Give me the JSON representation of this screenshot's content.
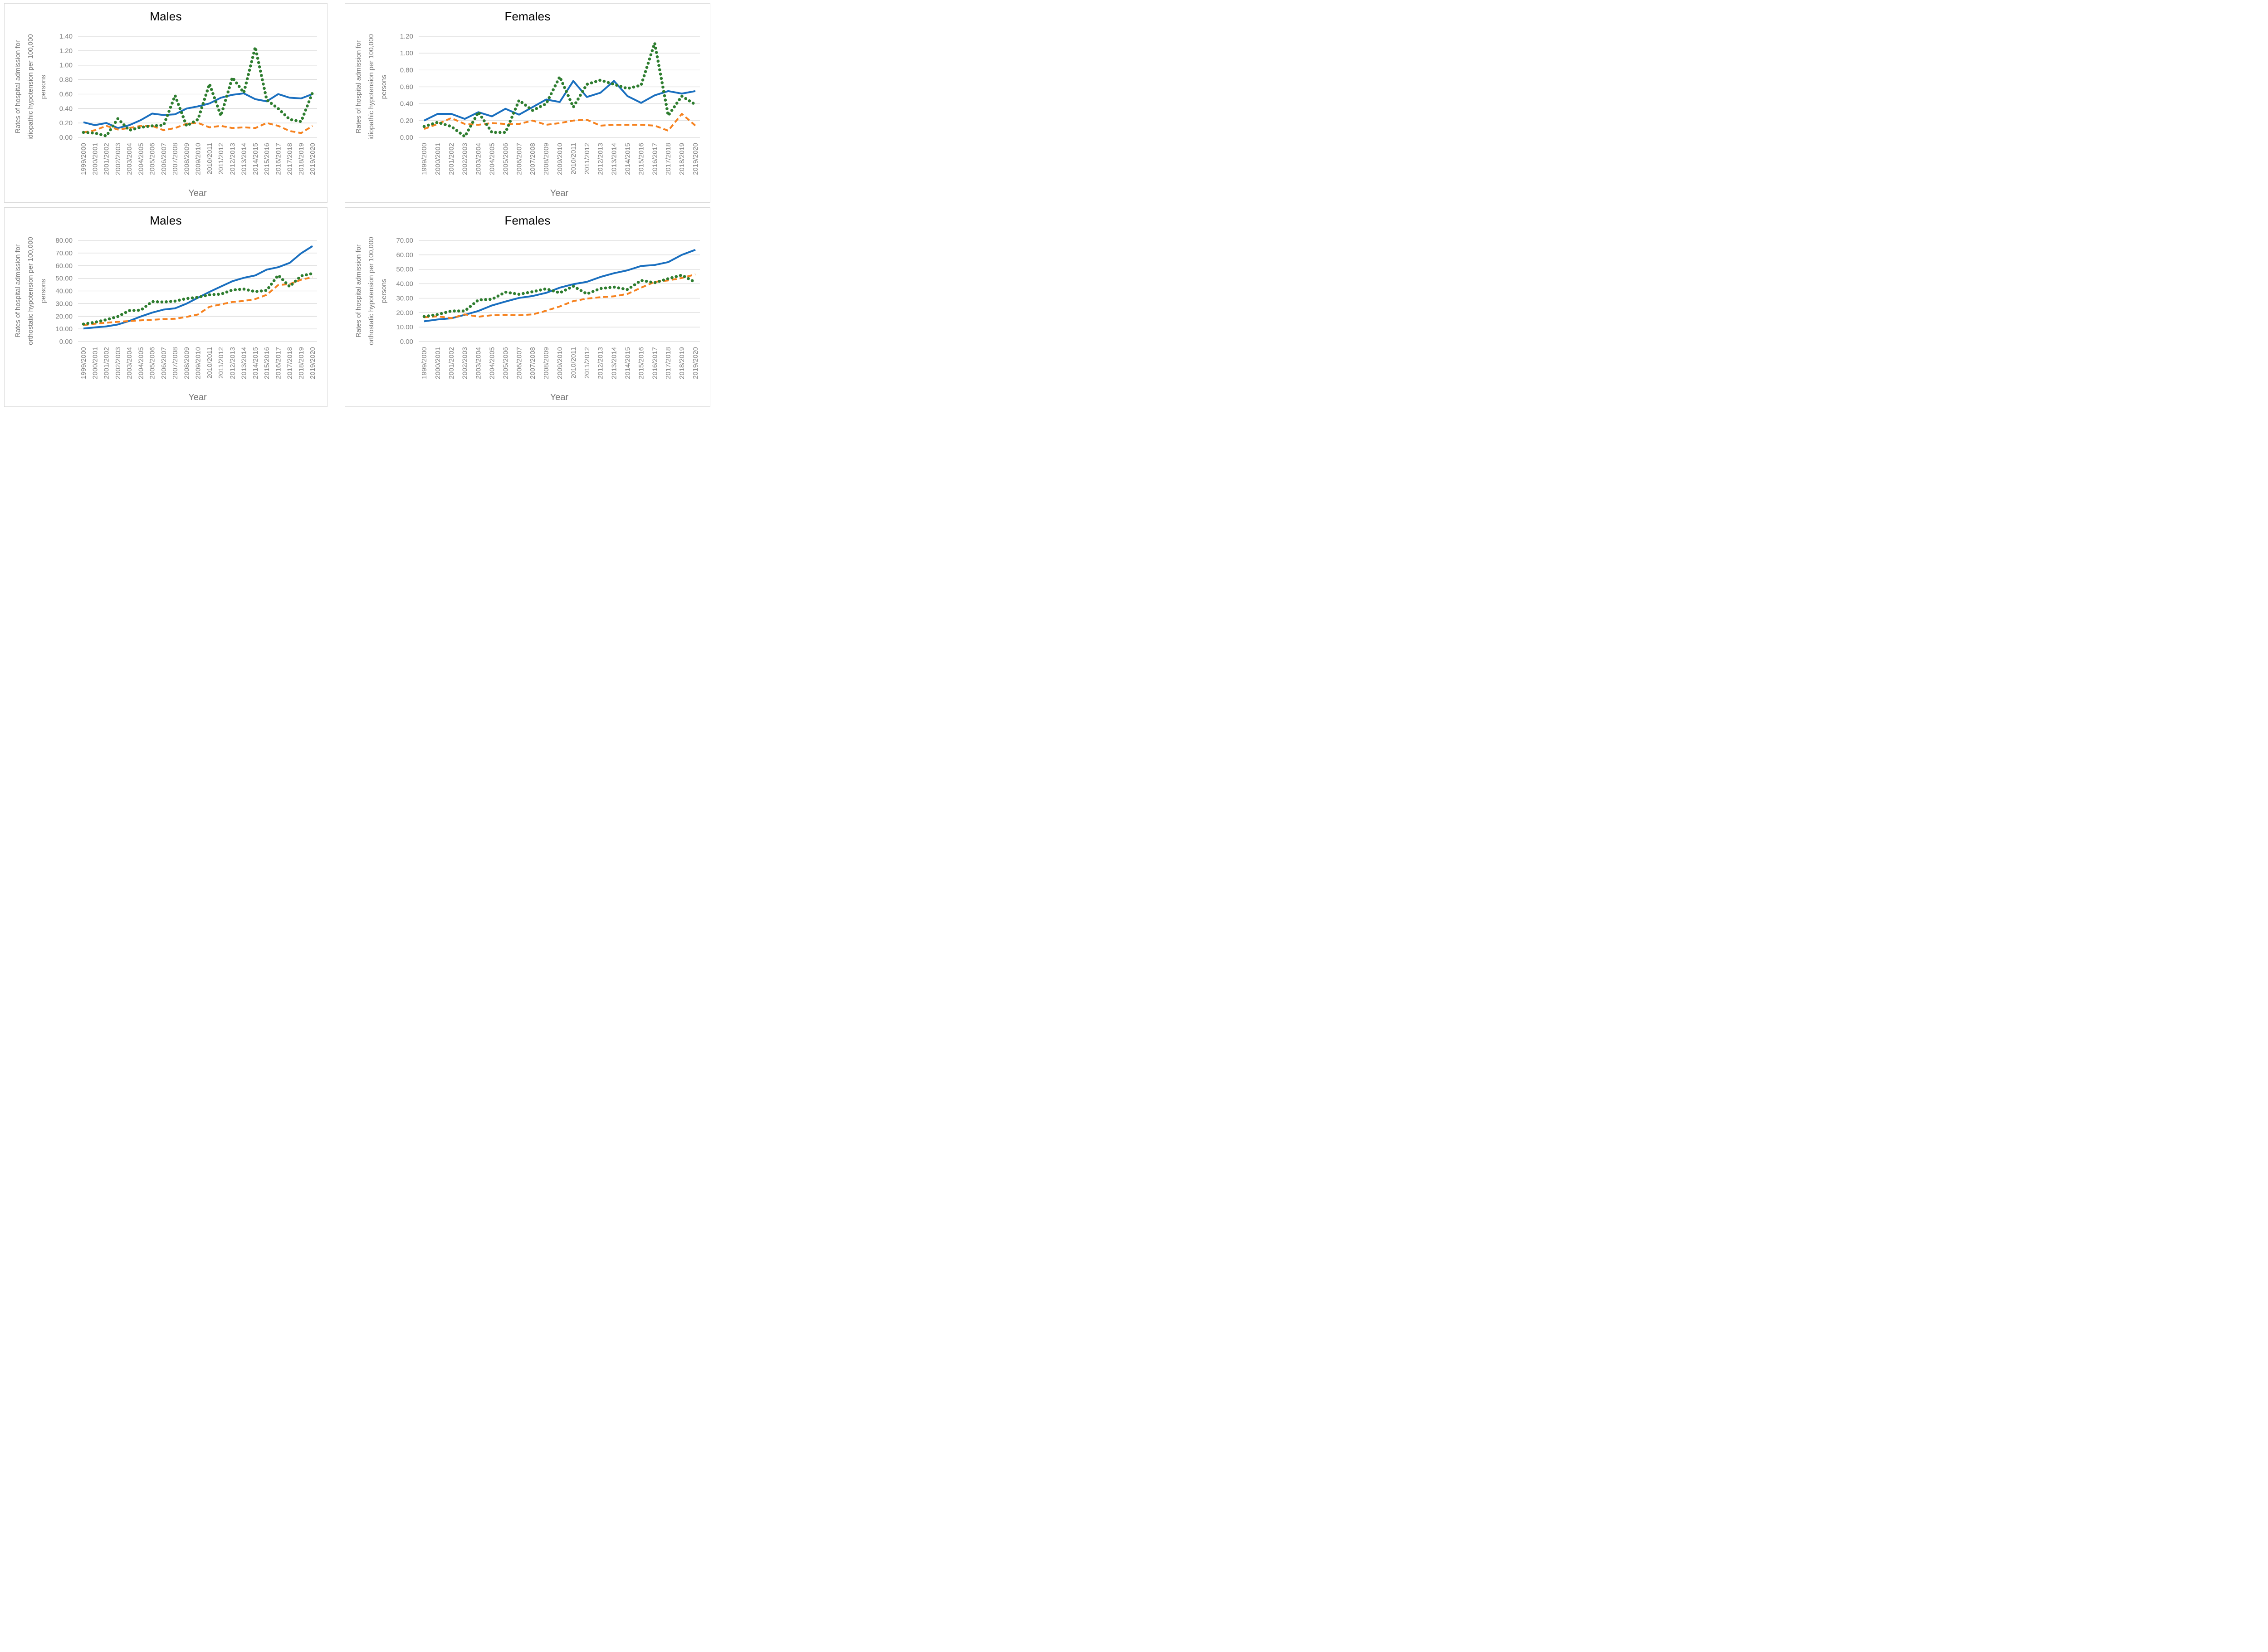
{
  "style": {
    "series_blue": "#1a6fbf",
    "series_orange": "#f6821f",
    "series_green": "#2e7d2f",
    "gridline_color": "#d9d9d9",
    "tick_label_color": "#808080",
    "axis_title_color": "#767676",
    "chart_title_color": "#000000",
    "panel_border_color": "#d9d9d9",
    "background": "#ffffff"
  },
  "chart_data": [
    {
      "type": "line",
      "title": "Males",
      "xlabel": "Year",
      "ylabel_lines": [
        "Rates of hospital admission for",
        "idiopathic hypotension per 100,000",
        "persons"
      ],
      "y_max": 1.4,
      "y_step": 0.2,
      "y_decimals": 2,
      "ylim": [
        0,
        1.4
      ],
      "grid": true,
      "legend": null,
      "categories": [
        "1999/2000",
        "2000/2001",
        "2001/2002",
        "2002/2003",
        "2003/2004",
        "2004/2005",
        "2005/2006",
        "2006/2007",
        "2007/2008",
        "2008/2009",
        "2009/2010",
        "2010/2011",
        "2011/2012",
        "2012/2013",
        "2013/2014",
        "2014/2015",
        "2015/2016",
        "2016/2017",
        "2017/2018",
        "2018/2019",
        "2019/2020"
      ],
      "series": [
        {
          "name": "blue-solid",
          "color": "#1a6fbf",
          "style": "solid",
          "values": [
            0.21,
            0.17,
            0.2,
            0.13,
            0.17,
            0.24,
            0.33,
            0.31,
            0.32,
            0.4,
            0.43,
            0.47,
            0.55,
            0.59,
            0.61,
            0.53,
            0.5,
            0.6,
            0.55,
            0.54,
            0.6
          ]
        },
        {
          "name": "orange-dashed",
          "color": "#f6821f",
          "style": "dashed",
          "values": [
            0.07,
            0.1,
            0.16,
            0.11,
            0.13,
            0.16,
            0.16,
            0.1,
            0.13,
            0.19,
            0.2,
            0.14,
            0.16,
            0.13,
            0.14,
            0.13,
            0.2,
            0.16,
            0.09,
            0.06,
            0.16
          ]
        },
        {
          "name": "green-dotted",
          "color": "#2e7d2f",
          "style": "dotted",
          "values": [
            0.07,
            0.06,
            0.02,
            0.26,
            0.1,
            0.14,
            0.16,
            0.17,
            0.58,
            0.16,
            0.25,
            0.74,
            0.3,
            0.83,
            0.62,
            1.25,
            0.52,
            0.4,
            0.25,
            0.22,
            0.62
          ]
        }
      ]
    },
    {
      "type": "line",
      "title": "Females",
      "xlabel": "Year",
      "ylabel_lines": [
        "Rates of hospital admission for",
        "idiopathic hypotension per 100,000",
        "persons"
      ],
      "y_max": 1.2,
      "y_step": 0.2,
      "y_decimals": 2,
      "ylim": [
        0,
        1.2
      ],
      "grid": true,
      "legend": null,
      "categories": [
        "1999/2000",
        "2000/2001",
        "2001/2002",
        "2002/2003",
        "2003/2004",
        "2004/2005",
        "2005/2006",
        "2006/2007",
        "2007/2008",
        "2008/2009",
        "2009/2010",
        "2010/2011",
        "2011/2012",
        "2012/2013",
        "2013/2014",
        "2014/2015",
        "2015/2016",
        "2016/2017",
        "2017/2018",
        "2018/2019",
        "2019/2020"
      ],
      "series": [
        {
          "name": "blue-solid",
          "color": "#1a6fbf",
          "style": "solid",
          "values": [
            0.2,
            0.28,
            0.28,
            0.22,
            0.3,
            0.25,
            0.34,
            0.27,
            0.36,
            0.45,
            0.42,
            0.67,
            0.48,
            0.53,
            0.67,
            0.49,
            0.41,
            0.5,
            0.55,
            0.52,
            0.55
          ]
        },
        {
          "name": "orange-dashed",
          "color": "#f6821f",
          "style": "dashed",
          "values": [
            0.1,
            0.16,
            0.23,
            0.16,
            0.15,
            0.17,
            0.16,
            0.16,
            0.2,
            0.15,
            0.17,
            0.2,
            0.21,
            0.14,
            0.15,
            0.15,
            0.15,
            0.14,
            0.08,
            0.28,
            0.14
          ]
        },
        {
          "name": "green-dotted",
          "color": "#2e7d2f",
          "style": "dotted",
          "values": [
            0.13,
            0.18,
            0.13,
            0.01,
            0.3,
            0.06,
            0.06,
            0.44,
            0.32,
            0.4,
            0.72,
            0.36,
            0.63,
            0.68,
            0.63,
            0.58,
            0.62,
            1.12,
            0.26,
            0.49,
            0.39
          ]
        }
      ]
    },
    {
      "type": "line",
      "title": "Males",
      "xlabel": "Year",
      "ylabel_lines": [
        "Rates of hospital admission for",
        "orthostatic hypotension per 100,000",
        "persons"
      ],
      "y_max": 80.0,
      "y_step": 10.0,
      "y_decimals": 2,
      "ylim": [
        0,
        80
      ],
      "grid": true,
      "legend": null,
      "categories": [
        "1999/2000",
        "2000/2001",
        "2001/2002",
        "2002/2003",
        "2003/2004",
        "2004/2005",
        "2005/2006",
        "2006/2007",
        "2007/2008",
        "2008/2009",
        "2009/2010",
        "2010/2011",
        "2011/2012",
        "2012/2013",
        "2013/2014",
        "2014/2015",
        "2015/2016",
        "2016/2017",
        "2017/2018",
        "2018/2019",
        "2019/2020"
      ],
      "series": [
        {
          "name": "blue-solid",
          "color": "#1a6fbf",
          "style": "solid",
          "values": [
            10.3,
            11.2,
            12.0,
            13.5,
            16.3,
            19.8,
            22.9,
            25.3,
            26.3,
            30.0,
            34.7,
            39.3,
            43.5,
            47.7,
            50.4,
            52.3,
            56.9,
            58.8,
            62.2,
            69.8,
            75.5
          ]
        },
        {
          "name": "orange-dashed",
          "color": "#f6821f",
          "style": "dashed",
          "values": [
            13.0,
            14.1,
            14.9,
            15.6,
            16.2,
            16.8,
            17.2,
            17.8,
            18.0,
            19.5,
            21.4,
            27.5,
            29.4,
            31.3,
            32.1,
            33.6,
            37.0,
            44.7,
            45.4,
            48.9,
            50.9
          ]
        },
        {
          "name": "green-dotted",
          "color": "#2e7d2f",
          "style": "dotted",
          "values": [
            13.8,
            15.3,
            17.3,
            19.8,
            24.5,
            24.8,
            31.6,
            31.3,
            32.0,
            34.0,
            35.0,
            37.0,
            37.5,
            40.8,
            41.5,
            39.5,
            40.5,
            52.5,
            43.5,
            51.9,
            53.8
          ]
        }
      ]
    },
    {
      "type": "line",
      "title": "Females",
      "xlabel": "Year",
      "ylabel_lines": [
        "Rates of hospital admission for",
        "orthostatic hypotension per 100,000",
        "persons"
      ],
      "y_max": 70.0,
      "y_step": 10.0,
      "y_decimals": 2,
      "ylim": [
        0,
        70
      ],
      "grid": true,
      "legend": null,
      "categories": [
        "1999/2000",
        "2000/2001",
        "2001/2002",
        "2002/2003",
        "2003/2004",
        "2004/2005",
        "2005/2006",
        "2006/2007",
        "2007/2008",
        "2008/2009",
        "2009/2010",
        "2010/2011",
        "2011/2012",
        "2012/2013",
        "2013/2014",
        "2014/2015",
        "2015/2016",
        "2016/2017",
        "2017/2018",
        "2018/2019",
        "2019/2020"
      ],
      "series": [
        {
          "name": "blue-solid",
          "color": "#1a6fbf",
          "style": "solid",
          "values": [
            14.0,
            15.3,
            16.1,
            18.5,
            21.2,
            25.0,
            27.7,
            30.2,
            31.5,
            33.7,
            37.3,
            39.7,
            41.3,
            44.7,
            47.3,
            49.3,
            52.3,
            53.0,
            55.0,
            60.0,
            63.5
          ]
        },
        {
          "name": "orange-dashed",
          "color": "#f6821f",
          "style": "dashed",
          "values": [
            16.8,
            17.5,
            16.2,
            18.8,
            17.2,
            18.2,
            18.5,
            18.2,
            18.8,
            21.3,
            24.3,
            28.0,
            29.7,
            30.7,
            31.3,
            33.0,
            37.3,
            41.3,
            42.3,
            44.0,
            46.5
          ]
        },
        {
          "name": "green-dotted",
          "color": "#2e7d2f",
          "style": "dotted",
          "values": [
            17.3,
            18.7,
            21.2,
            21.2,
            28.8,
            29.3,
            34.2,
            32.7,
            34.5,
            36.5,
            33.7,
            38.3,
            33.0,
            36.7,
            37.7,
            36.0,
            42.3,
            40.7,
            43.5,
            46.0,
            41.0
          ]
        }
      ]
    }
  ]
}
